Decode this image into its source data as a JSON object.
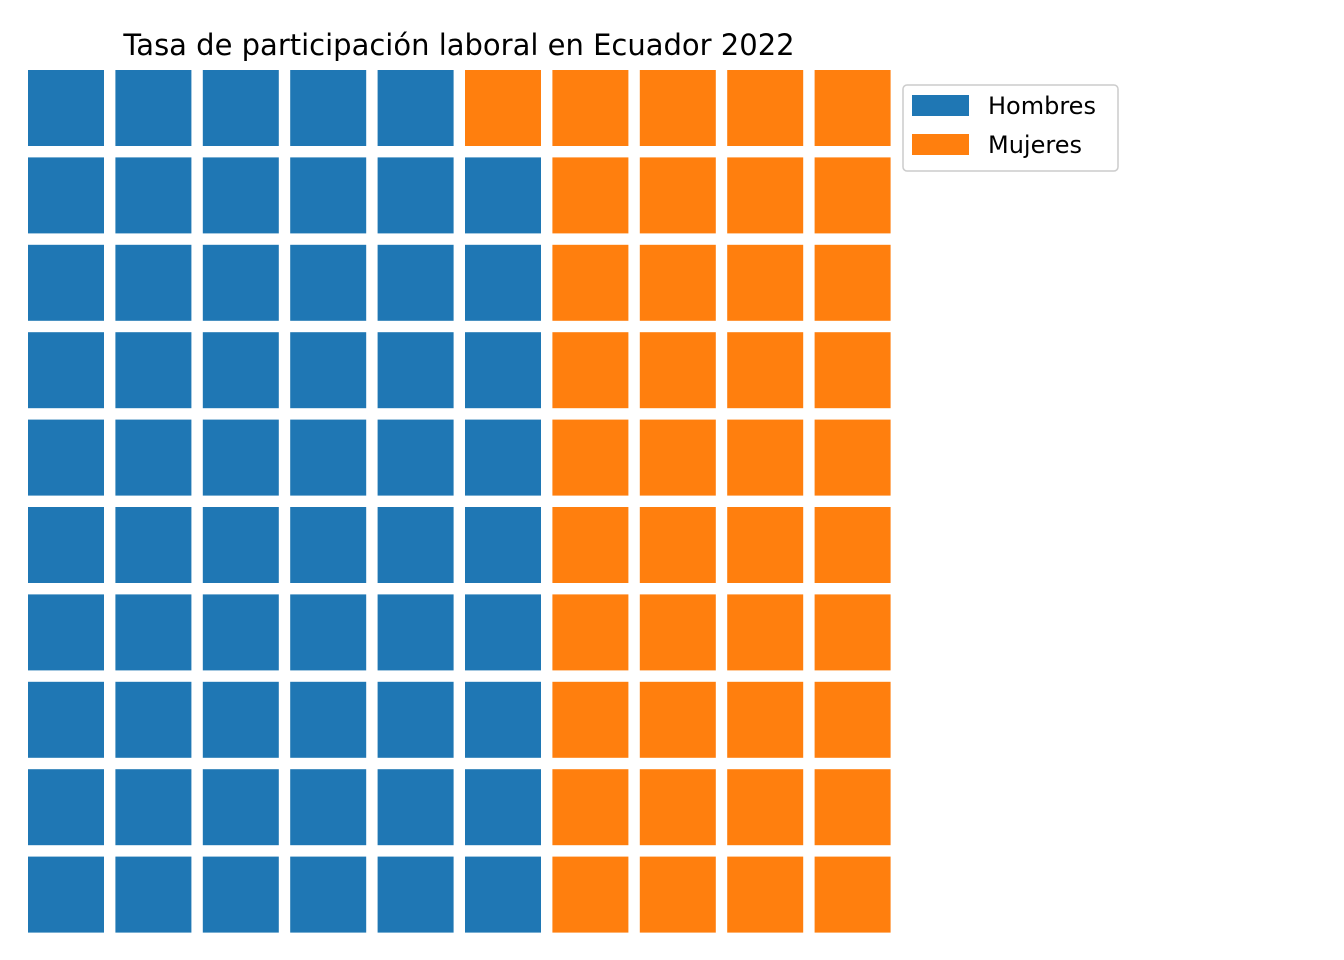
{
  "chart_data": {
    "type": "waffle",
    "title": "Tasa de participación laboral en Ecuador 2022",
    "rows": 10,
    "columns": 10,
    "total_squares": 100,
    "series": [
      {
        "name": "Hombres",
        "value": 59,
        "color": "#1f77b4"
      },
      {
        "name": "Mujeres",
        "value": 41,
        "color": "#ff7f0e"
      }
    ],
    "fill_order": "column-wise from bottom-left",
    "legend_position": "top-right",
    "axes": "hidden",
    "grid": false
  }
}
